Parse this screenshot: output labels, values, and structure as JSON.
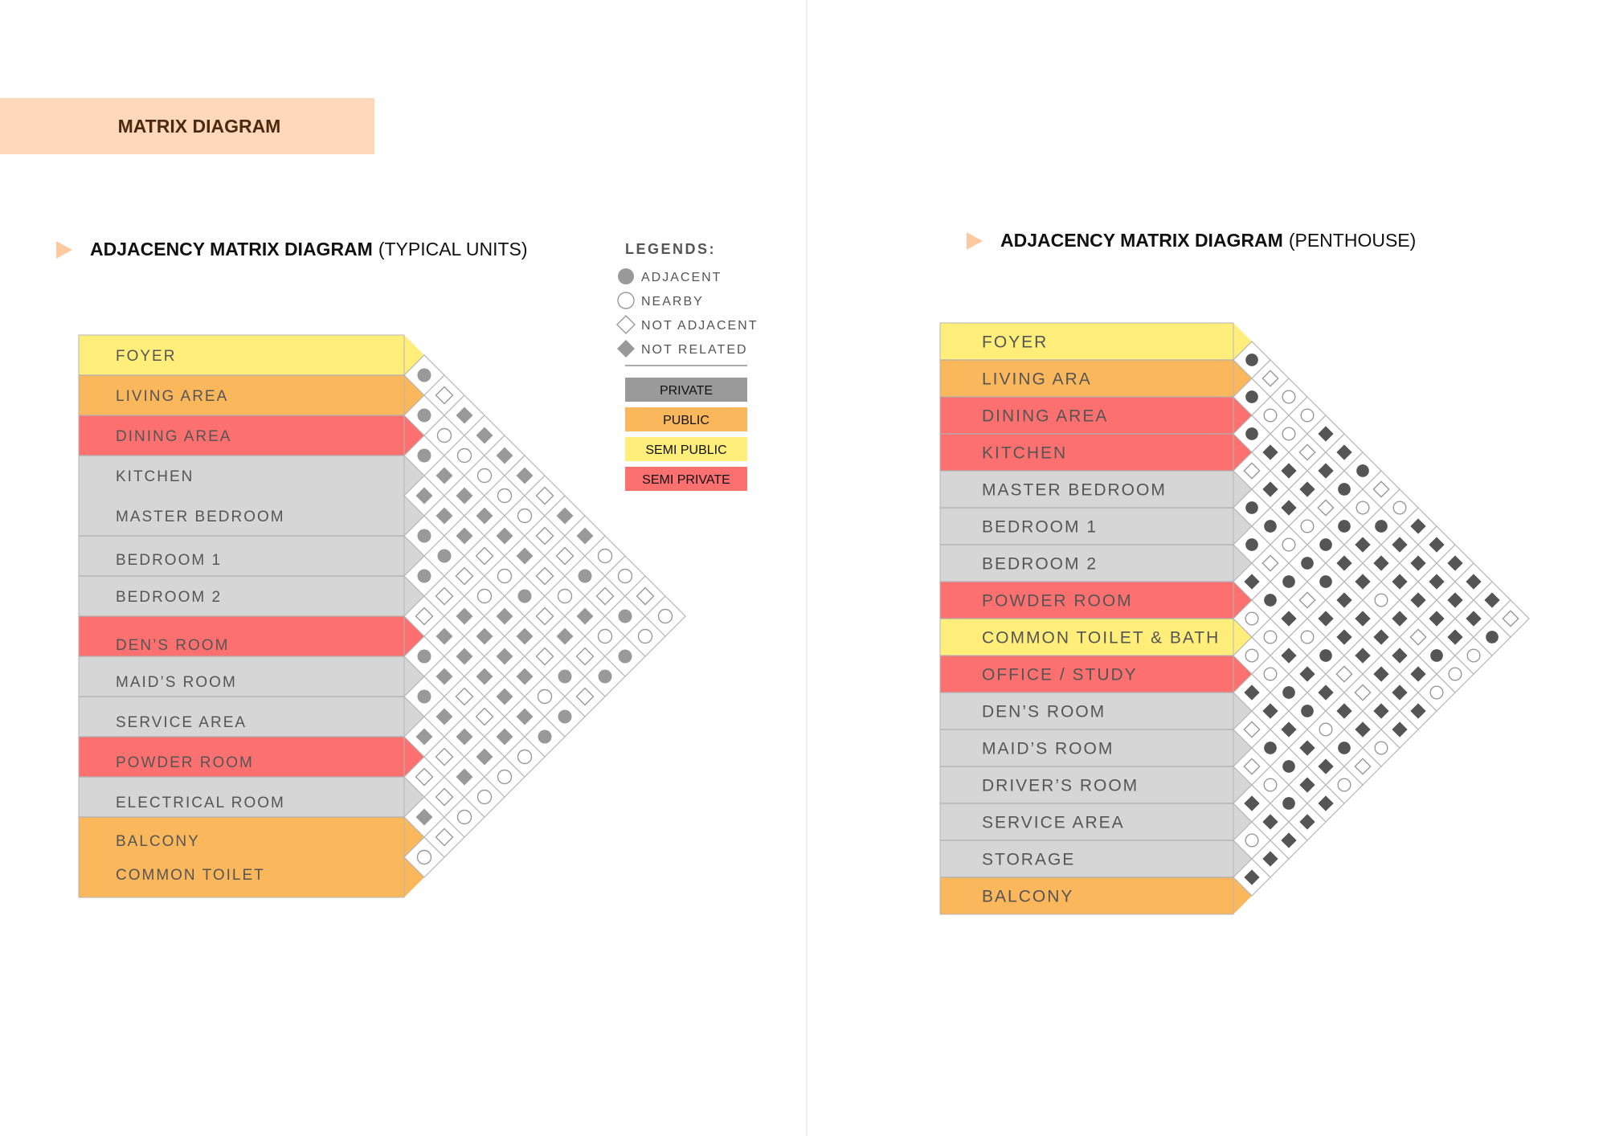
{
  "header": {
    "title": "MATRIX DIAGRAM"
  },
  "colors": {
    "semi_public": "#FFEE7A",
    "public": "#FAB75C",
    "semi_private": "#FC7070",
    "private_row": "#D6D6D6",
    "private_legend": "#9A9A9A",
    "symbol_typical": "#999999",
    "symbol_penthouse": "#555555"
  },
  "legend": {
    "title": "LEGENDS:",
    "symbols": [
      {
        "code": "A",
        "icon": "filled-circle-icon",
        "label": "ADJACENT"
      },
      {
        "code": "N",
        "icon": "hollow-circle-icon",
        "label": "NEARBY"
      },
      {
        "code": "D",
        "icon": "hollow-diamond-icon",
        "label": "NOT ADJACENT"
      },
      {
        "code": "R",
        "icon": "filled-diamond-icon",
        "label": "NOT RELATED"
      }
    ],
    "zones": [
      {
        "key": "private_legend",
        "label": "PRIVATE"
      },
      {
        "key": "public",
        "label": "PUBLIC"
      },
      {
        "key": "semi_public",
        "label": "SEMI PUBLIC"
      },
      {
        "key": "semi_private",
        "label": "SEMI PRIVATE"
      }
    ]
  },
  "typical": {
    "title_bold": "ADJACENCY MATRIX DIAGRAM",
    "title_rest": "(TYPICAL UNITS)",
    "rows": [
      {
        "label": "FOYER",
        "zone": "semi_public"
      },
      {
        "label": "LIVING AREA",
        "zone": "public"
      },
      {
        "label": "DINING AREA",
        "zone": "semi_private"
      },
      {
        "label": "KITCHEN",
        "zone": "private_row"
      },
      {
        "label": "MASTER BEDROOM",
        "zone": "private_row"
      },
      {
        "label": "BEDROOM 1",
        "zone": "private_row"
      },
      {
        "label": "BEDROOM 2",
        "zone": "private_row"
      },
      {
        "label": "DEN’S ROOM",
        "zone": "semi_private"
      },
      {
        "label": "MAID’S ROOM",
        "zone": "private_row"
      },
      {
        "label": "SERVICE AREA",
        "zone": "private_row"
      },
      {
        "label": "POWDER ROOM",
        "zone": "semi_private"
      },
      {
        "label": "ELECTRICAL ROOM",
        "zone": "private_row"
      },
      {
        "label": "BALCONY",
        "zone": "public"
      },
      {
        "label": "COMMON TOILET",
        "zone": "public"
      }
    ],
    "diagonals": [
      "AAARAADAARDRN",
      "DNRRADRRRDDD",
      "RNRRDRRDRRN",
      "RNRDNRRDRN",
      "RNRNRRRRN",
      "RNRARRRN",
      "DDDDDNA",
      "RDNRAA",
      "RARDD",
      "NDNA",
      "NAA",
      "DN",
      "N"
    ]
  },
  "penthouse": {
    "title_bold": "ADJACENCY MATRIX DIAGRAM",
    "title_rest": "(PENTHOUSE)",
    "rows": [
      {
        "label": "FOYER",
        "zone": "semi_public"
      },
      {
        "label": "LIVING ARA",
        "zone": "public"
      },
      {
        "label": "DINING AREA",
        "zone": "semi_private"
      },
      {
        "label": "KITCHEN",
        "zone": "semi_private"
      },
      {
        "label": "MASTER BEDROOM",
        "zone": "private_row"
      },
      {
        "label": "BEDROOM 1",
        "zone": "private_row"
      },
      {
        "label": "BEDROOM 2",
        "zone": "private_row"
      },
      {
        "label": "POWDER ROOM",
        "zone": "semi_private"
      },
      {
        "label": "COMMON TOILET & BATH",
        "zone": "semi_public"
      },
      {
        "label": "OFFICE / STUDY",
        "zone": "semi_private"
      },
      {
        "label": "DEN’S ROOM",
        "zone": "private_row"
      },
      {
        "label": "MAID’S ROOM",
        "zone": "private_row"
      },
      {
        "label": "DRIVER’S ROOM",
        "zone": "private_row"
      },
      {
        "label": "SERVICE AREA",
        "zone": "private_row"
      },
      {
        "label": "STORAGE",
        "zone": "private_row"
      },
      {
        "label": "BALCONY",
        "zone": "public"
      }
    ],
    "diagonals": [
      "AAADAARNNRDDRNR",
      "DNRRADANNRANRR",
      "NNRRNARRARAAR",
      "NDRNADNRARRR",
      "RRDAARARNRR",
      "RAARRRDRAN",
      "ANRRRRDRD",
      "DARNRRRN",
      "NRRRRRR",
      "RRRDRR",
      "RRRAN",
      "RRRN",
      "RRN",
      "RA",
      "D"
    ]
  }
}
